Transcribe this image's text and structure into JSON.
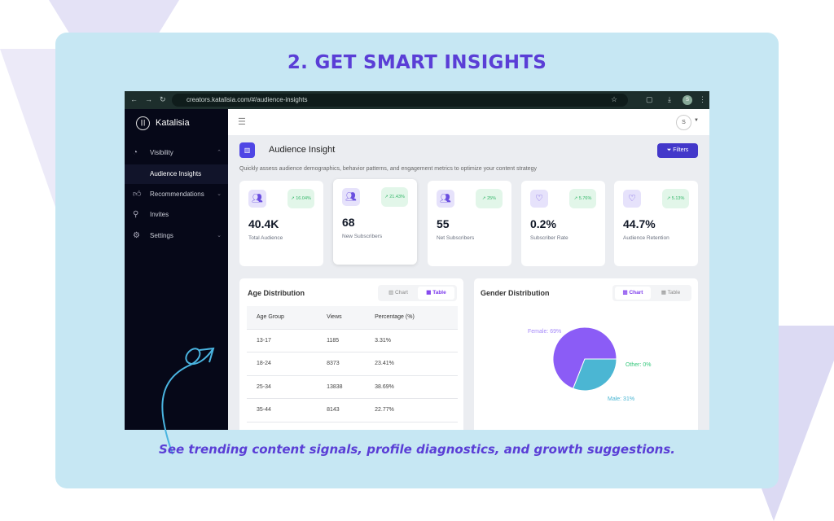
{
  "headline": "2. GET SMART INSIGHTS",
  "tagline": "See trending content signals, profile diagnostics, and growth suggestions.",
  "browser": {
    "url": "creators.katalisia.com/#/audience-insights",
    "avatar": "S"
  },
  "sidebar": {
    "brand": "Katalisia",
    "items": [
      {
        "label": "Visibility",
        "icon": "clock-icon",
        "chevron": "^"
      },
      {
        "label": "Audience Insights"
      },
      {
        "label": "Recommendations",
        "icon": "thumbs-up-icon",
        "chevron": "v"
      },
      {
        "label": "Invites",
        "icon": "user-plus-icon"
      },
      {
        "label": "Settings",
        "icon": "gear-icon",
        "chevron": "v"
      }
    ]
  },
  "header": {
    "menu_icon": "☰",
    "avatar": "S",
    "title": "Audience Insight",
    "filters": "Filters",
    "subtitle": "Quickly assess audience demographics, behavior patterns, and engagement metrics to optimize your content strategy"
  },
  "kpis": [
    {
      "value": "40.4K",
      "label": "Total Audience",
      "change": "16.04%",
      "icon": "users-icon"
    },
    {
      "value": "68",
      "label": "New Subscribers",
      "change": "21.43%",
      "icon": "users-icon"
    },
    {
      "value": "55",
      "label": "Net Subscribers",
      "change": "25%",
      "icon": "users-icon"
    },
    {
      "value": "0.2%",
      "label": "Subscriber Rate",
      "change": "5.76%",
      "icon": "heart-icon"
    },
    {
      "value": "44.7%",
      "label": "Audience Retention",
      "change": "5.13%",
      "icon": "heart-icon"
    }
  ],
  "age": {
    "title": "Age Distribution",
    "toggle": [
      "Chart",
      "Table"
    ],
    "active": "Table",
    "columns": [
      "Age Group",
      "Views",
      "Percentage (%)"
    ],
    "rows": [
      [
        "13-17",
        "1185",
        "3.31%"
      ],
      [
        "18-24",
        "8373",
        "23.41%"
      ],
      [
        "25-34",
        "13838",
        "38.69%"
      ],
      [
        "35-44",
        "8143",
        "22.77%"
      ]
    ]
  },
  "gender": {
    "title": "Gender Distribution",
    "toggle": [
      "Chart",
      "Table"
    ],
    "active": "Chart"
  },
  "chart_data": {
    "type": "pie",
    "categories": [
      "Female",
      "Male",
      "Other"
    ],
    "values": [
      69,
      31,
      0
    ],
    "labels": [
      "Female: 69%",
      "Male: 31%",
      "Other: 0%"
    ],
    "colors": [
      "#8b5cf6",
      "#4bb6d3",
      "#34c77b"
    ]
  }
}
